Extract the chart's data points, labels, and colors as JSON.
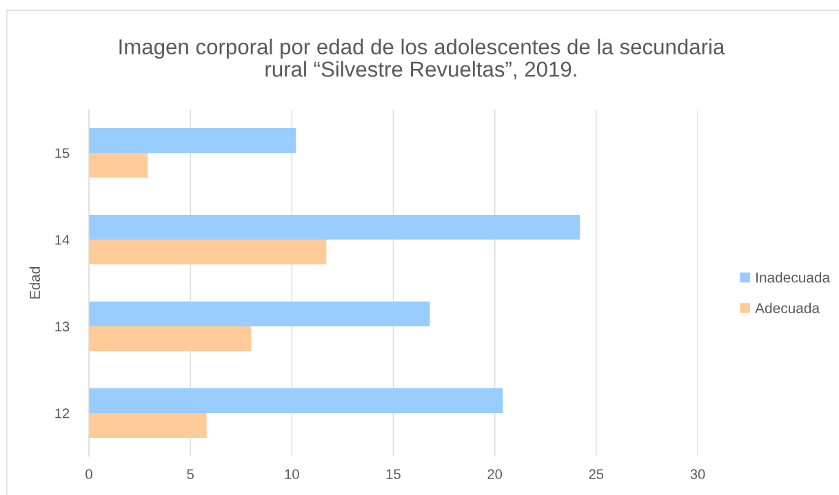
{
  "chart_data": {
    "type": "bar",
    "orientation": "horizontal",
    "title": "Imagen corporal por edad de los adolescentes de la secundaria\nrural “Silvestre Revueltas”, 2019.",
    "ylabel": "Edad",
    "categories": [
      "15",
      "14",
      "13",
      "12"
    ],
    "series": [
      {
        "name": "Inadecuada",
        "color": "#99ccff",
        "values": [
          10.2,
          24.2,
          16.8,
          20.4
        ]
      },
      {
        "name": "Adecuada",
        "color": "#ffcc99",
        "values": [
          2.9,
          11.7,
          8.0,
          5.8
        ]
      }
    ],
    "xlim": [
      0,
      30
    ],
    "xticks": [
      0,
      5,
      10,
      15,
      20,
      25,
      30
    ],
    "grid": "x",
    "legend": "right"
  }
}
